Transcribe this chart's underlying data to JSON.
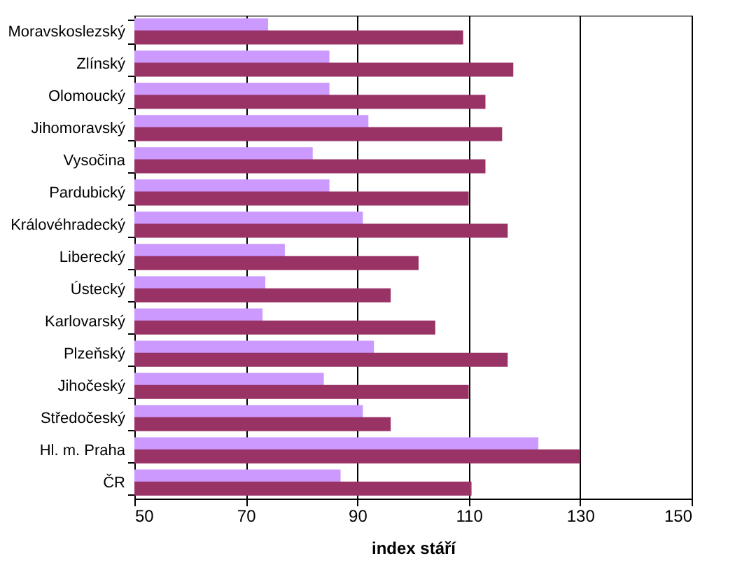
{
  "chart_data": {
    "type": "bar",
    "orientation": "horizontal",
    "xlabel": "index stáří",
    "categories": [
      "Moravskoslezský",
      "Zlínský",
      "Olomoucký",
      "Jihomoravský",
      "Vysočina",
      "Pardubický",
      "Královéhradecký",
      "Liberecký",
      "Ústecký",
      "Karlovarský",
      "Plzeňský",
      "Jihočeský",
      "Středočeský",
      "Hl. m. Praha",
      "ČR"
    ],
    "series": [
      {
        "color": "#cc99ff",
        "values": [
          74,
          85,
          85,
          92,
          82,
          85,
          91,
          77,
          73.5,
          73,
          93,
          84,
          91,
          122.5,
          87
        ]
      },
      {
        "color": "#993366",
        "values": [
          109,
          118,
          113,
          116,
          113,
          110,
          117,
          101,
          96,
          104,
          117,
          110,
          96,
          130,
          110.5
        ]
      }
    ],
    "xlim": [
      50,
      150
    ],
    "xticks": [
      50,
      70,
      90,
      110,
      130,
      150
    ],
    "grid": "x",
    "legend": false
  }
}
